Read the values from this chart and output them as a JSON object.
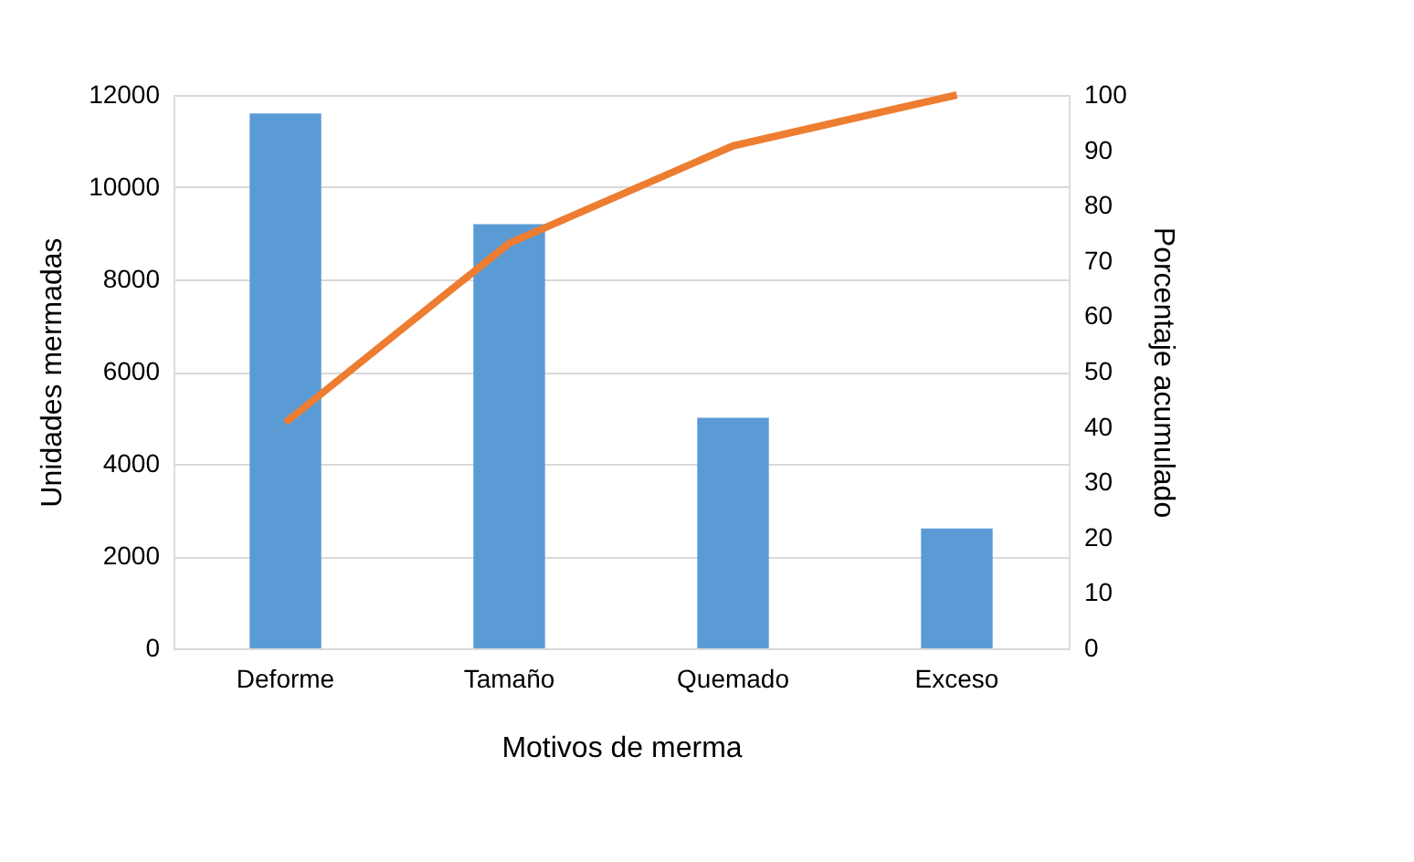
{
  "chart_data": {
    "type": "bar",
    "xlabel": "Motivos de merma",
    "ylabel": "Unidades mermadas",
    "y2label": "Porcentaje acumulado",
    "categories": [
      "Deforme",
      "Tamaño",
      "Quemado",
      "Exceso"
    ],
    "series": [
      {
        "color": "#5b9bd5",
        "values": [
          11600,
          9200,
          5000,
          2600
        ]
      },
      {
        "type": "line",
        "axis": "y2",
        "color": "#ed7d31",
        "values": [
          40.8,
          73.2,
          90.8,
          100
        ]
      }
    ],
    "ylim": [
      0,
      12000
    ],
    "yticks": [
      0,
      2000,
      4000,
      6000,
      8000,
      10000,
      12000
    ],
    "y2lim": [
      0,
      100
    ],
    "y2ticks": [
      0,
      10,
      20,
      30,
      40,
      50,
      60,
      70,
      80,
      90,
      100
    ],
    "grid": "y",
    "legend": false
  }
}
